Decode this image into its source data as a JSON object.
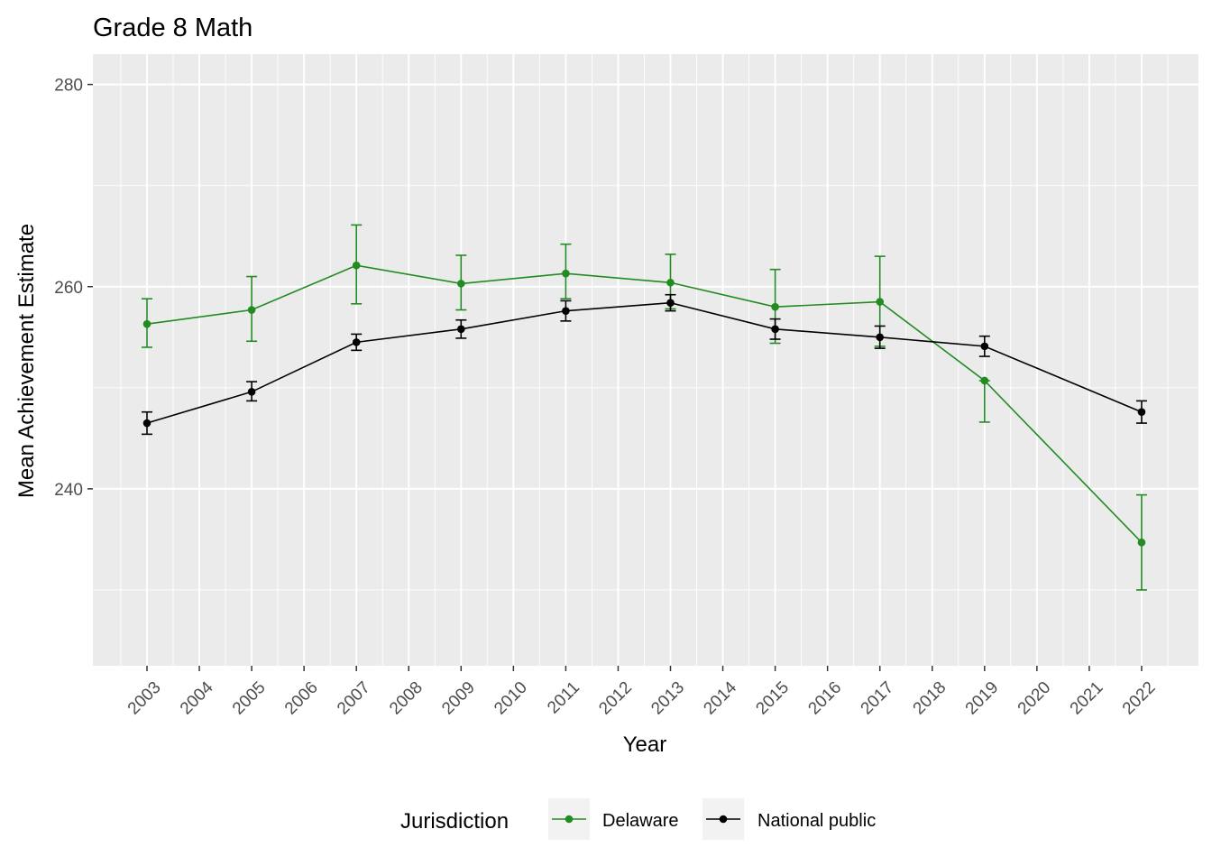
{
  "chart_data": {
    "type": "line",
    "title": "Grade 8 Math",
    "xlabel": "Year",
    "ylabel": "Mean Achievement Estimate",
    "x_ticks": [
      "2003",
      "2004",
      "2005",
      "2006",
      "2007",
      "2008",
      "2009",
      "2010",
      "2011",
      "2012",
      "2013",
      "2014",
      "2015",
      "2016",
      "2017",
      "2018",
      "2019",
      "2020",
      "2021",
      "2022"
    ],
    "y_ticks": [
      240,
      260,
      280
    ],
    "ylim": [
      222.5,
      283
    ],
    "grid": true,
    "legend": {
      "title": "Jurisdiction",
      "position": "bottom"
    },
    "series": [
      {
        "name": "Delaware",
        "color": "#228B22",
        "x": [
          "2003",
          "2005",
          "2007",
          "2009",
          "2011",
          "2013",
          "2015",
          "2017",
          "2019",
          "2022"
        ],
        "values": [
          256.3,
          257.7,
          262.1,
          260.3,
          261.3,
          260.4,
          258.0,
          258.5,
          250.7,
          234.7
        ],
        "lower": [
          254.0,
          254.6,
          258.3,
          257.7,
          258.8,
          257.8,
          254.4,
          254.1,
          246.6,
          230.0
        ],
        "upper": [
          258.8,
          261.0,
          266.1,
          263.1,
          264.2,
          263.2,
          261.7,
          263.0,
          250.7,
          239.4
        ]
      },
      {
        "name": "National public",
        "color": "#000000",
        "x": [
          "2003",
          "2005",
          "2007",
          "2009",
          "2011",
          "2013",
          "2015",
          "2017",
          "2019",
          "2022"
        ],
        "values": [
          246.5,
          249.6,
          254.5,
          255.8,
          257.6,
          258.4,
          255.8,
          255.0,
          254.1,
          247.6
        ],
        "lower": [
          245.4,
          248.7,
          253.7,
          254.9,
          256.6,
          257.6,
          254.8,
          253.9,
          253.1,
          246.5
        ],
        "upper": [
          247.6,
          250.6,
          255.3,
          256.7,
          258.6,
          259.2,
          256.8,
          256.1,
          255.1,
          248.7
        ]
      }
    ]
  }
}
